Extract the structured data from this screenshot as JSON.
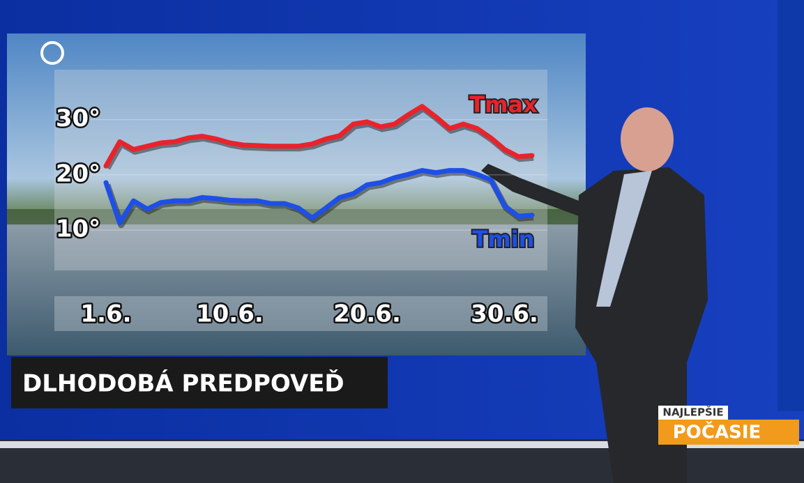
{
  "chart_data": {
    "type": "line",
    "title": "DLHODOBÁ PREDPOVEĎ",
    "brand_top": "NAJLEPŠIE",
    "brand_bottom": "POČASIE",
    "categories": [
      "1.6.",
      null,
      null,
      null,
      null,
      null,
      null,
      null,
      null,
      "10.6.",
      null,
      null,
      null,
      null,
      null,
      null,
      null,
      null,
      null,
      "20.6.",
      null,
      null,
      null,
      null,
      null,
      null,
      null,
      null,
      null,
      "30.6.",
      null,
      null
    ],
    "series": [
      {
        "name": "Tmax",
        "color": "#e8232b",
        "values": [
          21.6,
          26,
          24.6,
          25.2,
          25.8,
          26,
          26.7,
          27,
          26.5,
          25.8,
          25.4,
          25.3,
          25.2,
          25.2,
          25.2,
          25.6,
          26.5,
          27.1,
          29.2,
          29.6,
          28.7,
          29.2,
          30.9,
          32.4,
          30.5,
          28.4,
          29.2,
          28.4,
          26.7,
          24.6,
          23.3,
          23.5
        ]
      },
      {
        "name": "Tmin",
        "color": "#1e4fe6",
        "values": [
          18.6,
          11.3,
          15.3,
          13.8,
          15,
          15.3,
          15.3,
          15.9,
          15.7,
          15.4,
          15.3,
          15.3,
          14.8,
          14.8,
          14,
          12.2,
          14,
          15.9,
          16.6,
          18.2,
          18.6,
          19.5,
          20.1,
          20.8,
          20.4,
          20.8,
          20.8,
          20.1,
          19.1,
          14.4,
          12.5,
          12.7
        ]
      }
    ],
    "ylim": [
      8,
      34
    ],
    "yticks": [
      {
        "value": 10,
        "label": "10°"
      },
      {
        "value": 20,
        "label": "20°"
      },
      {
        "value": 30,
        "label": "30°"
      }
    ],
    "grid": true
  }
}
